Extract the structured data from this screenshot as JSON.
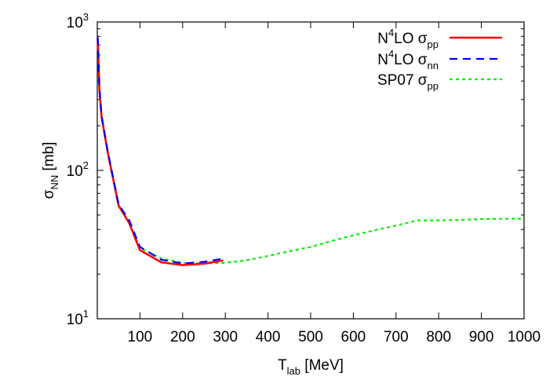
{
  "chart_data": {
    "type": "line",
    "xlabel": {
      "main": "T",
      "sub": "lab",
      "rest": " [MeV]"
    },
    "ylabel": {
      "main": "σ",
      "sub": "NN",
      "rest": " [mb]"
    },
    "xlim": [
      0,
      1000
    ],
    "ylim": [
      10,
      1000
    ],
    "y_scale": "log",
    "x_ticks": [
      "100",
      "200",
      "300",
      "400",
      "500",
      "600",
      "700",
      "800",
      "900",
      "1000"
    ],
    "y_ticks": [
      {
        "base": "10",
        "exp": "1",
        "value": 10
      },
      {
        "base": "10",
        "exp": "2",
        "value": 100
      },
      {
        "base": "10",
        "exp": "3",
        "value": 1000
      }
    ],
    "legend_position": "top-right",
    "grid": false,
    "series": [
      {
        "label_pre": "N",
        "label_sup": "4",
        "label_mid": "LO σ",
        "label_sub": "pp",
        "color": "#ff0000",
        "style": "solid",
        "x": [
          1,
          5,
          10,
          25,
          50,
          75,
          100,
          150,
          200,
          250,
          295
        ],
        "y": [
          780,
          350,
          230,
          130,
          58,
          44,
          29,
          24,
          23,
          23.5,
          24.7
        ]
      },
      {
        "label_pre": "N",
        "label_sup": "4",
        "label_mid": "LO σ",
        "label_sub": "nn",
        "color": "#0000ff",
        "style": "dashed",
        "x": [
          1,
          5,
          10,
          25,
          50,
          75,
          100,
          150,
          200,
          250,
          290
        ],
        "y": [
          790,
          360,
          235,
          132,
          59,
          46,
          30.5,
          25,
          23.6,
          24.2,
          25.3
        ]
      },
      {
        "label_pre": "SP07 σ",
        "label_sup": "",
        "label_mid": "",
        "label_sub": "pp",
        "color": "#00ee00",
        "style": "dotted",
        "x": [
          1,
          5,
          10,
          25,
          50,
          75,
          100,
          150,
          200,
          250,
          300,
          350,
          400,
          450,
          500,
          550,
          600,
          650,
          700,
          750,
          800,
          850,
          900,
          950,
          1000
        ],
        "y": [
          780,
          350,
          230,
          130,
          57,
          44,
          30,
          25.5,
          23.8,
          23.6,
          23.8,
          24.8,
          26.5,
          28.5,
          30.5,
          33.5,
          36.5,
          39.5,
          42.5,
          46,
          46,
          46.3,
          47,
          47.2,
          47.2
        ]
      }
    ]
  }
}
